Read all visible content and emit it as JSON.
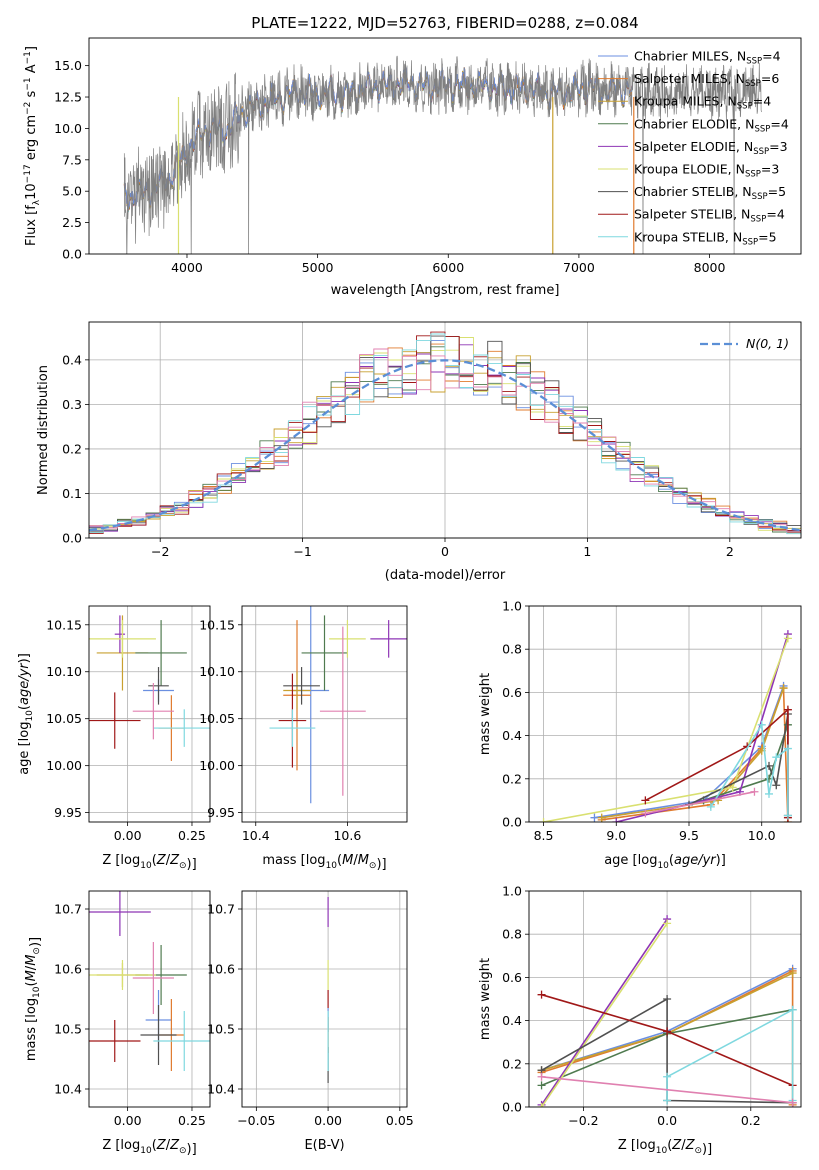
{
  "colors": {
    "Chabrier MILES": "#6b8fe0",
    "Salpeter MILES": "#e07b2e",
    "Kroupa MILES": "#c8a030",
    "Chabrier ELODIE": "#4f7a4f",
    "Salpeter ELODIE": "#8e35b5",
    "Kroupa ELODIE": "#d9e070",
    "Chabrier STELIB": "#505050",
    "Salpeter STELIB": "#a01818",
    "Kroupa STELIB": "#7fd8df",
    "pink": "#e080b0",
    "normal": "#5b8fd6",
    "grid": "#b0b0b0"
  },
  "chart_data": [
    {
      "id": "spectrum",
      "type": "line",
      "title": "PLATE=1222, MJD=52763, FIBERID=0288, z=0.084",
      "xlabel": "wavelength [Angstrom, rest frame]",
      "ylabel_parts": [
        "Flux [f",
        "λ",
        "10",
        "−17",
        " erg cm",
        "−2",
        " s",
        "−1",
        " A",
        "−1",
        "]"
      ],
      "xlim": [
        3250,
        8700
      ],
      "ylim": [
        0,
        17.2
      ],
      "xticks": [
        4000,
        5000,
        6000,
        7000,
        8000
      ],
      "xtick_labels": [
        "4000",
        "5000",
        "6000",
        "7000",
        "8000"
      ],
      "yticks": [
        0.0,
        2.5,
        5.0,
        7.5,
        10.0,
        12.5,
        15.0
      ],
      "ytick_labels": [
        "0.0",
        "2.5",
        "5.0",
        "7.5",
        "10.0",
        "12.5",
        "15.0"
      ],
      "grid": false,
      "legend_position": "top-right",
      "continuum_points": [
        [
          3520,
          4.5
        ],
        [
          3700,
          5.0
        ],
        [
          3800,
          5.5
        ],
        [
          3900,
          6.5
        ],
        [
          4000,
          8.3
        ],
        [
          4100,
          9.5
        ],
        [
          4200,
          10.0
        ],
        [
          4300,
          9.8
        ],
        [
          4400,
          11.0
        ],
        [
          4500,
          11.7
        ],
        [
          4600,
          12.0
        ],
        [
          4700,
          12.4
        ],
        [
          4800,
          12.8
        ],
        [
          4900,
          13.0
        ],
        [
          5000,
          12.7
        ],
        [
          5100,
          12.9
        ],
        [
          5200,
          12.6
        ],
        [
          5300,
          13.0
        ],
        [
          5400,
          13.3
        ],
        [
          5500,
          13.4
        ],
        [
          5600,
          13.5
        ],
        [
          5700,
          13.6
        ],
        [
          5800,
          13.4
        ],
        [
          5900,
          13.3
        ],
        [
          6000,
          13.4
        ],
        [
          6100,
          13.5
        ],
        [
          6200,
          13.3
        ],
        [
          6300,
          13.4
        ],
        [
          6400,
          13.2
        ],
        [
          6500,
          13.0
        ],
        [
          6600,
          13.2
        ],
        [
          6700,
          13.0
        ],
        [
          6800,
          12.7
        ],
        [
          6900,
          12.9
        ],
        [
          7000,
          13.1
        ],
        [
          7100,
          13.3
        ],
        [
          7200,
          13.0
        ],
        [
          7300,
          13.2
        ],
        [
          7400,
          12.9
        ]
      ],
      "data_range": [
        3520,
        8400
      ],
      "models_range": [
        3520,
        7420
      ],
      "legend": [
        {
          "name": "Chabrier MILES",
          "nssp": "4"
        },
        {
          "name": "Salpeter MILES",
          "nssp": "6"
        },
        {
          "name": "Kroupa MILES",
          "nssp": "4"
        },
        {
          "name": "Chabrier ELODIE",
          "nssp": "4"
        },
        {
          "name": "Salpeter ELODIE",
          "nssp": "3"
        },
        {
          "name": "Kroupa ELODIE",
          "nssp": "3"
        },
        {
          "name": "Chabrier STELIB",
          "nssp": "5"
        },
        {
          "name": "Salpeter STELIB",
          "nssp": "4"
        },
        {
          "name": "Kroupa STELIB",
          "nssp": "5"
        }
      ],
      "legend_suffix": ", N",
      "legend_sub": "SSP"
    },
    {
      "id": "hist",
      "type": "line",
      "xlabel": "(data-model)/error",
      "ylabel": "Normed distribution",
      "xlim": [
        -2.5,
        2.5
      ],
      "ylim": [
        0,
        0.485
      ],
      "xticks": [
        -2,
        -1,
        0,
        1,
        2
      ],
      "xtick_labels": [
        "−2",
        "−1",
        "0",
        "1",
        "2"
      ],
      "yticks": [
        0.0,
        0.1,
        0.2,
        0.3,
        0.4
      ],
      "ytick_labels": [
        "0.0",
        "0.1",
        "0.2",
        "0.3",
        "0.4"
      ],
      "grid": true,
      "legend_position": "top-right",
      "normal_label": "N(0, 1)",
      "bin_edges_range": [
        -2.5,
        2.5
      ],
      "n_bins": 50
    },
    {
      "id": "age_Z",
      "type": "scatter",
      "xlabel": "Z [log10(Z/Z⊙)]",
      "ylabel": "age  [log10(age/yr)]",
      "xlim": [
        -0.15,
        0.32
      ],
      "ylim": [
        9.94,
        10.17
      ],
      "xticks": [
        0.0,
        0.25
      ],
      "xtick_labels": [
        "0.00",
        "0.25"
      ],
      "yticks": [
        9.95,
        10.0,
        10.05,
        10.1,
        10.15
      ],
      "ytick_labels": [
        "9.95",
        "10.00",
        "10.05",
        "10.10",
        "10.15"
      ],
      "grid": true,
      "points": [
        {
          "series": "Chabrier MILES",
          "x": 0.12,
          "xerr": 0.06,
          "y": 10.08,
          "yerr": 0.012
        },
        {
          "series": "Salpeter MILES",
          "x": 0.17,
          "xerr": 0.05,
          "y": 10.04,
          "yerr": 0.035
        },
        {
          "series": "Kroupa MILES",
          "x": -0.02,
          "xerr": 0.1,
          "y": 10.12,
          "yerr": 0.04
        },
        {
          "series": "Chabrier ELODIE",
          "x": 0.13,
          "xerr": 0.1,
          "y": 10.12,
          "yerr": 0.035
        },
        {
          "series": "Salpeter ELODIE",
          "x": -0.03,
          "xerr": 0.02,
          "y": 10.14,
          "yerr": 0.02
        },
        {
          "series": "Kroupa ELODIE",
          "x": -0.02,
          "xerr": 0.13,
          "y": 10.135,
          "yerr": 0.02
        },
        {
          "series": "Chabrier STELIB",
          "x": 0.12,
          "xerr": 0.04,
          "y": 10.085,
          "yerr": 0.02
        },
        {
          "series": "Salpeter STELIB",
          "x": -0.05,
          "xerr": 0.1,
          "y": 10.048,
          "yerr": 0.03
        },
        {
          "series": "Kroupa STELIB",
          "x": 0.22,
          "xerr": 0.12,
          "y": 10.04,
          "yerr": 0.02
        },
        {
          "series": "pink",
          "x": 0.1,
          "xerr": 0.08,
          "y": 10.058,
          "yerr": 0.03
        }
      ]
    },
    {
      "id": "age_mass",
      "type": "scatter",
      "xlabel": "mass [log10(M/M⊙)]",
      "ylabel": "",
      "xlim": [
        10.37,
        10.73
      ],
      "ylim": [
        9.94,
        10.17
      ],
      "xticks": [
        10.4,
        10.6
      ],
      "xtick_labels": [
        "10.4",
        "10.6"
      ],
      "yticks": [
        9.95,
        10.0,
        10.05,
        10.1,
        10.15
      ],
      "ytick_labels": [
        "9.95",
        "10.00",
        "10.05",
        "10.10",
        "10.15"
      ],
      "grid": true,
      "points": [
        {
          "series": "Chabrier MILES",
          "x": 10.52,
          "xerr": 0.04,
          "y": 10.08,
          "yerr": 0.12
        },
        {
          "series": "Salpeter MILES",
          "x": 10.49,
          "xerr": 0.03,
          "y": 10.075,
          "yerr": 0.08
        },
        {
          "series": "Kroupa MILES",
          "x": 10.49,
          "xerr": 0.03,
          "y": 10.08,
          "yerr": 0.02
        },
        {
          "series": "Chabrier ELODIE",
          "x": 10.55,
          "xerr": 0.05,
          "y": 10.12,
          "yerr": 0.04
        },
        {
          "series": "Salpeter ELODIE",
          "x": 10.69,
          "xerr": 0.04,
          "y": 10.135,
          "yerr": 0.02
        },
        {
          "series": "Kroupa ELODIE",
          "x": 10.6,
          "xerr": 0.04,
          "y": 10.135,
          "yerr": 0.02
        },
        {
          "series": "Chabrier STELIB",
          "x": 10.5,
          "xerr": 0.04,
          "y": 10.085,
          "yerr": 0.02
        },
        {
          "series": "Salpeter STELIB",
          "x": 10.48,
          "xerr": 0.03,
          "y": 10.048,
          "yerr": 0.05
        },
        {
          "series": "Kroupa STELIB",
          "x": 10.48,
          "xerr": 0.05,
          "y": 10.04,
          "yerr": 0.02
        },
        {
          "series": "pink",
          "x": 10.59,
          "xerr": 0.05,
          "y": 10.058,
          "yerr": 0.09
        }
      ]
    },
    {
      "id": "weight_age",
      "type": "line",
      "xlabel": "age  [log10(age/yr)]",
      "ylabel": "mass weight",
      "xlim": [
        8.4,
        10.27
      ],
      "ylim": [
        0,
        1.0
      ],
      "xticks": [
        8.5,
        9.0,
        9.5,
        10.0
      ],
      "xtick_labels": [
        "8.5",
        "9.0",
        "9.5",
        "10.0"
      ],
      "yticks": [
        0.0,
        0.2,
        0.4,
        0.6,
        0.8,
        1.0
      ],
      "ytick_labels": [
        "0.0",
        "0.2",
        "0.4",
        "0.6",
        "0.8",
        "1.0"
      ],
      "grid": true,
      "series": [
        {
          "name": "Chabrier MILES",
          "x": [
            8.85,
            9.6,
            10.0,
            10.15
          ],
          "y": [
            0.02,
            0.1,
            0.35,
            0.63
          ]
        },
        {
          "name": "Salpeter MILES",
          "x": [
            8.9,
            9.65,
            10.0,
            10.15,
            10.18
          ],
          "y": [
            0.01,
            0.08,
            0.34,
            0.62,
            0.0
          ]
        },
        {
          "name": "Kroupa MILES",
          "x": [
            8.9,
            9.7,
            10.0,
            10.15
          ],
          "y": [
            0.02,
            0.1,
            0.33,
            0.62
          ]
        },
        {
          "name": "Chabrier ELODIE",
          "x": [
            9.6,
            10.05,
            10.18
          ],
          "y": [
            0.1,
            0.2,
            0.45
          ]
        },
        {
          "name": "Salpeter ELODIE",
          "x": [
            9.0,
            9.85,
            10.18
          ],
          "y": [
            0.0,
            0.14,
            0.87
          ]
        },
        {
          "name": "Kroupa ELODIE",
          "x": [
            8.5,
            9.8,
            10.18
          ],
          "y": [
            0.0,
            0.16,
            0.85
          ]
        },
        {
          "name": "Chabrier STELIB",
          "x": [
            9.5,
            10.05,
            10.1,
            10.18,
            10.18
          ],
          "y": [
            0.08,
            0.26,
            0.17,
            0.5,
            0.03
          ]
        },
        {
          "name": "Salpeter STELIB",
          "x": [
            9.2,
            9.9,
            10.18,
            10.18
          ],
          "y": [
            0.1,
            0.35,
            0.52,
            0.02
          ]
        },
        {
          "name": "Kroupa STELIB",
          "x": [
            9.65,
            10.0,
            10.05,
            10.1,
            10.18,
            10.18
          ],
          "y": [
            0.07,
            0.45,
            0.13,
            0.3,
            0.34,
            0.03
          ]
        },
        {
          "name": "pink",
          "x": [
            9.2,
            9.95
          ],
          "y": [
            0.04,
            0.14
          ]
        }
      ]
    },
    {
      "id": "mass_Z",
      "type": "scatter",
      "xlabel": "Z [log10(Z/Z⊙)]",
      "ylabel": "mass [log10(M/M⊙)]",
      "xlim": [
        -0.15,
        0.32
      ],
      "ylim": [
        10.37,
        10.73
      ],
      "xticks": [
        0.0,
        0.25
      ],
      "xtick_labels": [
        "0.00",
        "0.25"
      ],
      "yticks": [
        10.4,
        10.5,
        10.6,
        10.7
      ],
      "ytick_labels": [
        "10.4",
        "10.5",
        "10.6",
        "10.7"
      ],
      "grid": true,
      "points": [
        {
          "series": "Chabrier MILES",
          "x": 0.12,
          "xerr": 0.05,
          "y": 10.515,
          "yerr": 0.05
        },
        {
          "series": "Salpeter MILES",
          "x": 0.17,
          "xerr": 0.05,
          "y": 10.49,
          "yerr": 0.06
        },
        {
          "series": "Kroupa MILES",
          "x": -0.02,
          "xerr": 0.1,
          "y": 10.59,
          "yerr": 0.02
        },
        {
          "series": "Chabrier ELODIE",
          "x": 0.13,
          "xerr": 0.1,
          "y": 10.59,
          "yerr": 0.05
        },
        {
          "series": "Salpeter ELODIE",
          "x": -0.03,
          "xerr": 0.12,
          "y": 10.695,
          "yerr": 0.04
        },
        {
          "series": "Kroupa ELODIE",
          "x": -0.02,
          "xerr": 0.13,
          "y": 10.59,
          "yerr": 0.025
        },
        {
          "series": "Chabrier STELIB",
          "x": 0.12,
          "xerr": 0.07,
          "y": 10.49,
          "yerr": 0.05
        },
        {
          "series": "Salpeter STELIB",
          "x": -0.05,
          "xerr": 0.1,
          "y": 10.48,
          "yerr": 0.035
        },
        {
          "series": "Kroupa STELIB",
          "x": 0.22,
          "xerr": 0.12,
          "y": 10.48,
          "yerr": 0.05
        },
        {
          "series": "pink",
          "x": 0.1,
          "xerr": 0.08,
          "y": 10.585,
          "yerr": 0.06
        }
      ]
    },
    {
      "id": "mass_ebv",
      "type": "scatter",
      "xlabel": "E(B-V)",
      "ylabel": "",
      "xlim": [
        -0.06,
        0.055
      ],
      "ylim": [
        10.37,
        10.73
      ],
      "xticks": [
        -0.05,
        0.0,
        0.05
      ],
      "xtick_labels": [
        "−0.05",
        "0.00",
        "0.05"
      ],
      "yticks": [
        10.4,
        10.5,
        10.6,
        10.7
      ],
      "ytick_labels": [
        "10.4",
        "10.5",
        "10.6",
        "10.7"
      ],
      "grid": true,
      "points": [
        {
          "series": "Chabrier MILES",
          "x": 0.0,
          "xerr": 0.0,
          "y": 10.515,
          "yerr": 0.02
        },
        {
          "series": "Salpeter MILES",
          "x": 0.0,
          "xerr": 0.0,
          "y": 10.49,
          "yerr": 0.03
        },
        {
          "series": "Kroupa ELODIE",
          "x": 0.0,
          "xerr": 0.0,
          "y": 10.59,
          "yerr": 0.025
        },
        {
          "series": "Salpeter ELODIE",
          "x": 0.0,
          "xerr": 0.0,
          "y": 10.695,
          "yerr": 0.025
        },
        {
          "series": "Chabrier STELIB",
          "x": 0.0,
          "xerr": 0.0,
          "y": 10.44,
          "yerr": 0.03
        },
        {
          "series": "Salpeter STELIB",
          "x": 0.0,
          "xerr": 0.0,
          "y": 10.55,
          "yerr": 0.015
        },
        {
          "series": "Kroupa STELIB",
          "x": 0.0,
          "xerr": 0.0,
          "y": 10.48,
          "yerr": 0.05
        }
      ]
    },
    {
      "id": "weight_Z",
      "type": "line",
      "xlabel": "Z [log10(Z/Z⊙)]",
      "ylabel": "mass weight",
      "xlim": [
        -0.33,
        0.32
      ],
      "ylim": [
        0,
        1.0
      ],
      "xticks": [
        -0.2,
        0.0,
        0.2
      ],
      "xtick_labels": [
        "−0.2",
        "0.0",
        "0.2"
      ],
      "yticks": [
        0.0,
        0.2,
        0.4,
        0.6,
        0.8,
        1.0
      ],
      "ytick_labels": [
        "0.0",
        "0.2",
        "0.4",
        "0.6",
        "0.8",
        "1.0"
      ],
      "grid": true,
      "series": [
        {
          "name": "Chabrier MILES",
          "x": [
            -0.3,
            0.0,
            0.3
          ],
          "y": [
            0.17,
            0.35,
            0.64
          ]
        },
        {
          "name": "Salpeter MILES",
          "x": [
            -0.3,
            0.0,
            0.3,
            0.3
          ],
          "y": [
            0.16,
            0.34,
            0.63,
            0.01
          ]
        },
        {
          "name": "Kroupa MILES",
          "x": [
            -0.3,
            0.0,
            0.3
          ],
          "y": [
            0.17,
            0.34,
            0.62
          ]
        },
        {
          "name": "Chabrier ELODIE",
          "x": [
            -0.3,
            0.0,
            0.3
          ],
          "y": [
            0.1,
            0.34,
            0.45
          ]
        },
        {
          "name": "Salpeter ELODIE",
          "x": [
            -0.3,
            0.0
          ],
          "y": [
            0.01,
            0.87
          ]
        },
        {
          "name": "Kroupa ELODIE",
          "x": [
            -0.3,
            0.0
          ],
          "y": [
            0.0,
            0.85
          ]
        },
        {
          "name": "Chabrier STELIB",
          "x": [
            -0.3,
            0.0,
            0.0,
            0.3
          ],
          "y": [
            0.17,
            0.5,
            0.03,
            0.02
          ]
        },
        {
          "name": "Salpeter STELIB",
          "x": [
            -0.3,
            0.0,
            0.3
          ],
          "y": [
            0.52,
            0.35,
            0.1
          ]
        },
        {
          "name": "Kroupa STELIB",
          "x": [
            0.0,
            0.0,
            0.3,
            0.3
          ],
          "y": [
            0.03,
            0.14,
            0.45,
            0.03
          ]
        },
        {
          "name": "pink",
          "x": [
            -0.3,
            0.3
          ],
          "y": [
            0.14,
            0.02
          ]
        }
      ]
    }
  ]
}
